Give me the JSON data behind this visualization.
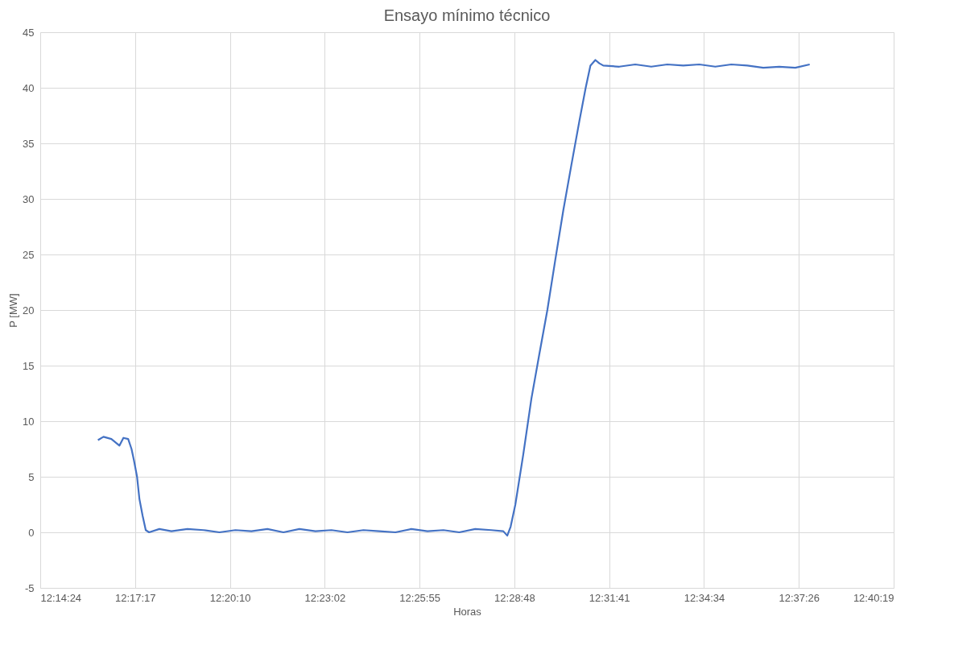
{
  "chart_data": {
    "type": "line",
    "title": "Ensayo mínimo técnico",
    "xlabel": "Horas",
    "ylabel": "P [MW]",
    "xlim": [
      12.24,
      12.672
    ],
    "ylim": [
      -5,
      45
    ],
    "xticks": [
      {
        "value": 12.24,
        "label": "12:14:24"
      },
      {
        "value": 12.288,
        "label": "12:17:17"
      },
      {
        "value": 12.336,
        "label": "12:20:10"
      },
      {
        "value": 12.384,
        "label": "12:23:02"
      },
      {
        "value": 12.432,
        "label": "12:25:55"
      },
      {
        "value": 12.48,
        "label": "12:28:48"
      },
      {
        "value": 12.528,
        "label": "12:31:41"
      },
      {
        "value": 12.576,
        "label": "12:34:34"
      },
      {
        "value": 12.624,
        "label": "12:37:26"
      },
      {
        "value": 12.672,
        "label": "12:40:19"
      }
    ],
    "yticks": [
      -5,
      0,
      5,
      10,
      15,
      20,
      25,
      30,
      35,
      40,
      45
    ],
    "grid": true,
    "marker": "none",
    "line_style": "solid",
    "series": [
      {
        "color": "#4472c4",
        "x": [
          12.2692,
          12.272,
          12.276,
          12.2801,
          12.2821,
          12.2845,
          12.2862,
          12.2874,
          12.289,
          12.2902,
          12.2918,
          12.2934,
          12.2951,
          12.3003,
          12.3064,
          12.3145,
          12.3226,
          12.3307,
          12.3388,
          12.3469,
          12.355,
          12.3631,
          12.3712,
          12.3793,
          12.3874,
          12.3955,
          12.4036,
          12.4117,
          12.4198,
          12.4279,
          12.436,
          12.4441,
          12.4521,
          12.4602,
          12.4683,
          12.4744,
          12.4764,
          12.4781,
          12.4805,
          12.4845,
          12.4886,
          12.4926,
          12.4967,
          12.5007,
          12.5048,
          12.5088,
          12.5129,
          12.5161,
          12.5185,
          12.521,
          12.523,
          12.525,
          12.5331,
          12.5412,
          12.5493,
          12.5574,
          12.5655,
          12.5736,
          12.5817,
          12.5898,
          12.5979,
          12.606,
          12.6141,
          12.6222,
          12.6295
        ],
        "values": [
          8.3,
          8.6,
          8.4,
          7.8,
          8.5,
          8.4,
          7.5,
          6.5,
          5.0,
          3.0,
          1.5,
          0.2,
          0.0,
          0.3,
          0.1,
          0.3,
          0.2,
          0.0,
          0.2,
          0.1,
          0.3,
          0.0,
          0.3,
          0.1,
          0.2,
          0.0,
          0.2,
          0.1,
          0.0,
          0.3,
          0.1,
          0.2,
          0.0,
          0.3,
          0.2,
          0.1,
          -0.3,
          0.5,
          2.5,
          7,
          12,
          16,
          20,
          24.5,
          29,
          33,
          37,
          40,
          42,
          42.5,
          42.2,
          42.0,
          41.9,
          42.1,
          41.9,
          42.1,
          42.0,
          42.1,
          41.9,
          42.1,
          42.0,
          41.8,
          41.9,
          41.8,
          42.1
        ]
      }
    ]
  }
}
